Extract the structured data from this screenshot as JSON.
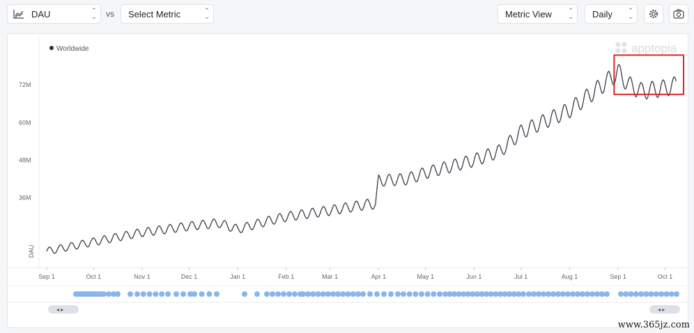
{
  "toolbar": {
    "metric_label": "DAU",
    "vs_label": "vs",
    "compare_label": "Select Metric",
    "view_label": "Metric View",
    "interval_label": "Daily",
    "icons": {
      "chart": "line-chart-icon",
      "settings": "gear-icon",
      "screenshot": "camera-icon"
    }
  },
  "brand": {
    "name": "apptopia"
  },
  "watermark": "www.365jz.com",
  "chart_data": {
    "type": "line",
    "legend": "Worldwide",
    "ylabel": "DAU",
    "yticks": [
      "72M",
      "60M",
      "48M",
      "36M"
    ],
    "ytick_values": [
      72,
      60,
      48,
      36
    ],
    "ylim": [
      16,
      86
    ],
    "y_unit": "M",
    "xticks": [
      "Sep 1",
      "Oct 1",
      "Nov 1",
      "Dec 1",
      "Jan 1",
      "Feb 1",
      "Mar 1",
      "Apr 1",
      "May 1",
      "Jun 1",
      "Jul 1",
      "Aug 1",
      "Sep 1",
      "Oct 1"
    ],
    "xtick_days": [
      0,
      30,
      61,
      91,
      122,
      153,
      181,
      212,
      242,
      273,
      303,
      334,
      365,
      395
    ],
    "x_range_days": [
      0,
      405
    ],
    "weekly_amplitude_M": 1.2,
    "trend": {
      "days": [
        0,
        20,
        40,
        61,
        91,
        110,
        122,
        140,
        153,
        181,
        205,
        210,
        212,
        230,
        242,
        273,
        290,
        303,
        334,
        350,
        365,
        372,
        380,
        395,
        402
      ],
      "values": [
        19,
        21,
        23,
        25,
        27,
        28,
        26,
        28.5,
        30,
        32,
        34,
        34,
        41.5,
        42,
        44,
        48,
        51,
        57,
        64,
        70,
        76,
        72,
        70,
        71,
        72
      ]
    },
    "highlight": {
      "from_day": 366,
      "to_day": 405
    },
    "event_markers": "blue dot markers along timeline"
  }
}
